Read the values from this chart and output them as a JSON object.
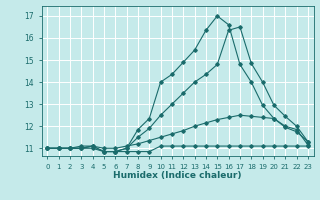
{
  "xlabel": "Humidex (Indice chaleur)",
  "background_color": "#c5eaea",
  "grid_color": "#ffffff",
  "line_color": "#1a6b6b",
  "xlim": [
    -0.5,
    23.5
  ],
  "ylim": [
    10.65,
    17.45
  ],
  "yticks": [
    11,
    12,
    13,
    14,
    15,
    16,
    17
  ],
  "xticks": [
    0,
    1,
    2,
    3,
    4,
    5,
    6,
    7,
    8,
    9,
    10,
    11,
    12,
    13,
    14,
    15,
    16,
    17,
    18,
    19,
    20,
    21,
    22,
    23
  ],
  "lines": [
    {
      "x": [
        0,
        1,
        2,
        3,
        4,
        5,
        6,
        7,
        8,
        9,
        10,
        11,
        12,
        13,
        14,
        15,
        16,
        17,
        18,
        19,
        20,
        21,
        22,
        23
      ],
      "y": [
        11.0,
        11.0,
        11.0,
        11.0,
        11.0,
        10.85,
        10.85,
        10.85,
        10.85,
        10.85,
        11.1,
        11.1,
        11.1,
        11.1,
        11.1,
        11.1,
        11.1,
        11.1,
        11.1,
        11.1,
        11.1,
        11.1,
        11.1,
        11.1
      ]
    },
    {
      "x": [
        0,
        1,
        2,
        3,
        4,
        5,
        6,
        7,
        8,
        9,
        10,
        11,
        12,
        13,
        14,
        15,
        16,
        17,
        18,
        19,
        20,
        21,
        22,
        23
      ],
      "y": [
        11.0,
        11.0,
        11.0,
        11.0,
        11.1,
        11.0,
        11.0,
        11.1,
        11.2,
        11.35,
        11.5,
        11.65,
        11.8,
        12.0,
        12.15,
        12.3,
        12.4,
        12.5,
        12.45,
        12.4,
        12.35,
        12.0,
        11.85,
        11.15
      ]
    },
    {
      "x": [
        0,
        1,
        2,
        3,
        4,
        5,
        6,
        7,
        8,
        9,
        10,
        11,
        12,
        13,
        14,
        15,
        16,
        17,
        18,
        19,
        20,
        21,
        22,
        23
      ],
      "y": [
        11.0,
        11.0,
        11.0,
        11.0,
        11.1,
        10.85,
        10.85,
        11.0,
        11.5,
        11.9,
        12.5,
        13.0,
        13.5,
        14.0,
        14.35,
        14.8,
        16.35,
        16.5,
        14.85,
        14.0,
        12.95,
        12.45,
        12.0,
        11.3
      ]
    },
    {
      "x": [
        0,
        1,
        2,
        3,
        4,
        5,
        6,
        7,
        8,
        9,
        10,
        11,
        12,
        13,
        14,
        15,
        16,
        17,
        18,
        19,
        20,
        21,
        22,
        23
      ],
      "y": [
        11.0,
        11.0,
        11.0,
        11.1,
        11.1,
        10.85,
        10.85,
        11.0,
        11.85,
        12.35,
        14.0,
        14.35,
        14.9,
        15.45,
        16.35,
        17.0,
        16.6,
        14.8,
        14.0,
        12.95,
        12.35,
        11.95,
        11.75,
        11.3
      ]
    }
  ]
}
